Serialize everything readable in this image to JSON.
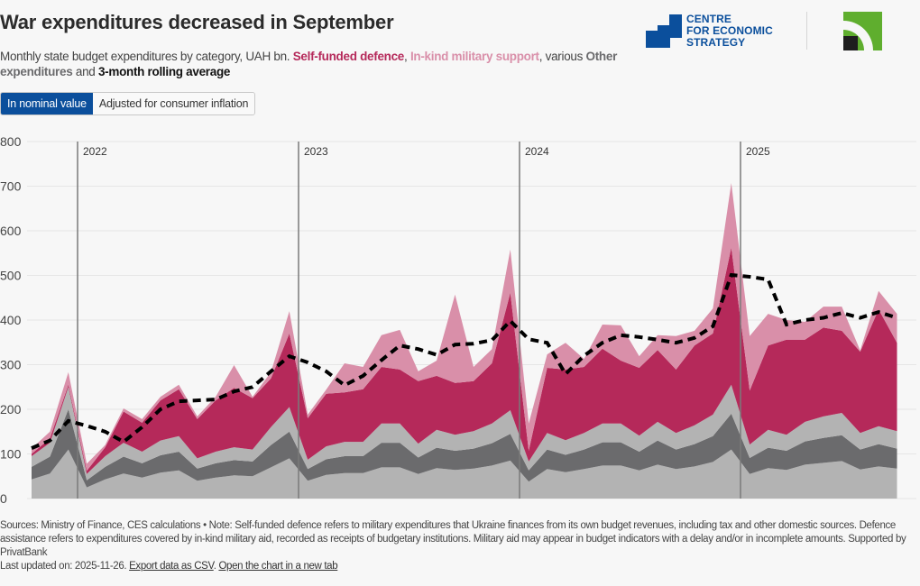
{
  "header": {
    "title": "War expenditures decreased in September",
    "subtitle_lead": "Monthly state budget expenditures by category, UAH bn. ",
    "legend_self": "Self-funded defence",
    "sep1": ", ",
    "legend_inkind": "In-kind military support",
    "sep2": ", various ",
    "legend_other": "Other expenditures",
    "sep3": " and ",
    "legend_avg": "3-month rolling average"
  },
  "toggle": {
    "options": [
      "In nominal value",
      "Adjusted for consumer inflation"
    ],
    "selected": "In nominal value"
  },
  "logos": {
    "ces_line1": "CENTRE",
    "ces_line2": "FOR ECONOMIC",
    "ces_line3": "STRATEGY",
    "ces_color": "#0b4f9c",
    "privatbank_color": "#5fae2e"
  },
  "footer": {
    "note": "Sources: Ministry of Finance, CES calculations • Note: Self-funded defence refers to military expenditures that Ukraine finances from its own budget revenues, including tax and other domestic sources. Defence assistance refers to expenditures covered by in-kind military aid, recorded as receipts of budgetary institutions. Military aid may appear in budget indicators with a delay and/or in incomplete amounts. Supported by PrivatBank",
    "updated": "Last updated on: 2025-11-26. ",
    "export_link": "Export data as CSV",
    "dot": ". ",
    "open_link": "Open the chart in a new tab"
  },
  "chart_data": {
    "type": "area",
    "stacked": true,
    "ylim": [
      0,
      800
    ],
    "yticks": [
      0,
      100,
      200,
      300,
      400,
      500,
      600,
      700,
      800
    ],
    "grid": true,
    "year_markers": [
      {
        "label": "2022",
        "date": "2022-01"
      },
      {
        "label": "2023",
        "date": "2023-01"
      },
      {
        "label": "2024",
        "date": "2024-01"
      },
      {
        "label": "2025",
        "date": "2025-01"
      }
    ],
    "x": [
      "2021-10",
      "2021-11",
      "2021-12",
      "2022-01",
      "2022-02",
      "2022-03",
      "2022-04",
      "2022-05",
      "2022-06",
      "2022-07",
      "2022-08",
      "2022-09",
      "2022-10",
      "2022-11",
      "2022-12",
      "2023-01",
      "2023-02",
      "2023-03",
      "2023-04",
      "2023-05",
      "2023-06",
      "2023-07",
      "2023-08",
      "2023-09",
      "2023-10",
      "2023-11",
      "2023-12",
      "2024-01",
      "2024-02",
      "2024-03",
      "2024-04",
      "2024-05",
      "2024-06",
      "2024-07",
      "2024-08",
      "2024-09",
      "2024-10",
      "2024-11",
      "2024-12",
      "2025-01",
      "2025-02",
      "2025-03",
      "2025-04",
      "2025-05",
      "2025-06",
      "2025-07",
      "2025-08",
      "2025-09"
    ],
    "series": [
      {
        "group": "Other expenditures",
        "color": "#b3b3b3",
        "values": [
          43,
          56,
          110,
          25,
          43,
          56,
          47,
          58,
          63,
          40,
          47,
          52,
          50,
          70,
          90,
          40,
          53,
          57,
          57,
          70,
          70,
          55,
          68,
          64,
          67,
          74,
          85,
          38,
          66,
          59,
          66,
          74,
          74,
          63,
          76,
          66,
          72,
          82,
          110,
          55,
          68,
          64,
          76,
          80,
          84,
          65,
          72,
          67
        ]
      },
      {
        "group": "Other expenditures",
        "color": "#6b6b6d",
        "values": [
          28,
          38,
          90,
          16,
          28,
          38,
          32,
          39,
          42,
          27,
          32,
          34,
          33,
          50,
          60,
          26,
          35,
          38,
          38,
          55,
          55,
          37,
          46,
          43,
          45,
          50,
          60,
          25,
          44,
          39,
          44,
          52,
          52,
          42,
          54,
          44,
          50,
          58,
          80,
          36,
          46,
          43,
          52,
          56,
          58,
          45,
          50,
          45
        ]
      },
      {
        "group": "Other expenditures",
        "color": "#b3b3b3",
        "values": [
          24,
          31,
          50,
          14,
          24,
          31,
          26,
          33,
          35,
          23,
          26,
          29,
          27,
          40,
          55,
          21,
          29,
          32,
          32,
          43,
          43,
          31,
          40,
          36,
          39,
          44,
          53,
          20,
          37,
          33,
          37,
          42,
          42,
          36,
          42,
          37,
          42,
          48,
          65,
          30,
          40,
          36,
          44,
          48,
          50,
          37,
          40,
          39
        ]
      },
      {
        "name": "Self-funded defence",
        "color": "#b5295a",
        "values": [
          5,
          10,
          5,
          7,
          20,
          70,
          65,
          90,
          105,
          88,
          115,
          133,
          115,
          109,
          165,
          93,
          118,
          111,
          118,
          127,
          121,
          140,
          121,
          116,
          112,
          135,
          263,
          24,
          146,
          158,
          148,
          168,
          141,
          152,
          161,
          142,
          179,
          182,
          307,
          121,
          189,
          213,
          184,
          199,
          184,
          182,
          262,
          198
        ]
      },
      {
        "name": "In-kind military support",
        "color": "#d98fa9",
        "values": [
          12,
          15,
          28,
          16,
          5,
          7,
          8,
          8,
          10,
          6,
          8,
          51,
          3,
          14,
          50,
          8,
          9,
          65,
          50,
          71,
          89,
          22,
          34,
          198,
          32,
          32,
          97,
          61,
          30,
          60,
          18,
          54,
          79,
          26,
          33,
          75,
          33,
          56,
          145,
          122,
          71,
          44,
          40,
          47,
          54,
          3,
          41,
          65
        ]
      }
    ],
    "rolling_average": {
      "name": "3-month rolling average",
      "color": "#000000",
      "values": [
        113,
        130,
        174,
        163,
        150,
        127,
        160,
        200,
        218,
        220,
        222,
        240,
        250,
        285,
        319,
        305,
        285,
        254,
        275,
        310,
        343,
        335,
        322,
        345,
        347,
        355,
        398,
        357,
        349,
        279,
        320,
        349,
        366,
        362,
        356,
        349,
        360,
        386,
        501,
        497,
        491,
        390,
        400,
        405,
        416,
        405,
        418,
        405
      ]
    }
  }
}
